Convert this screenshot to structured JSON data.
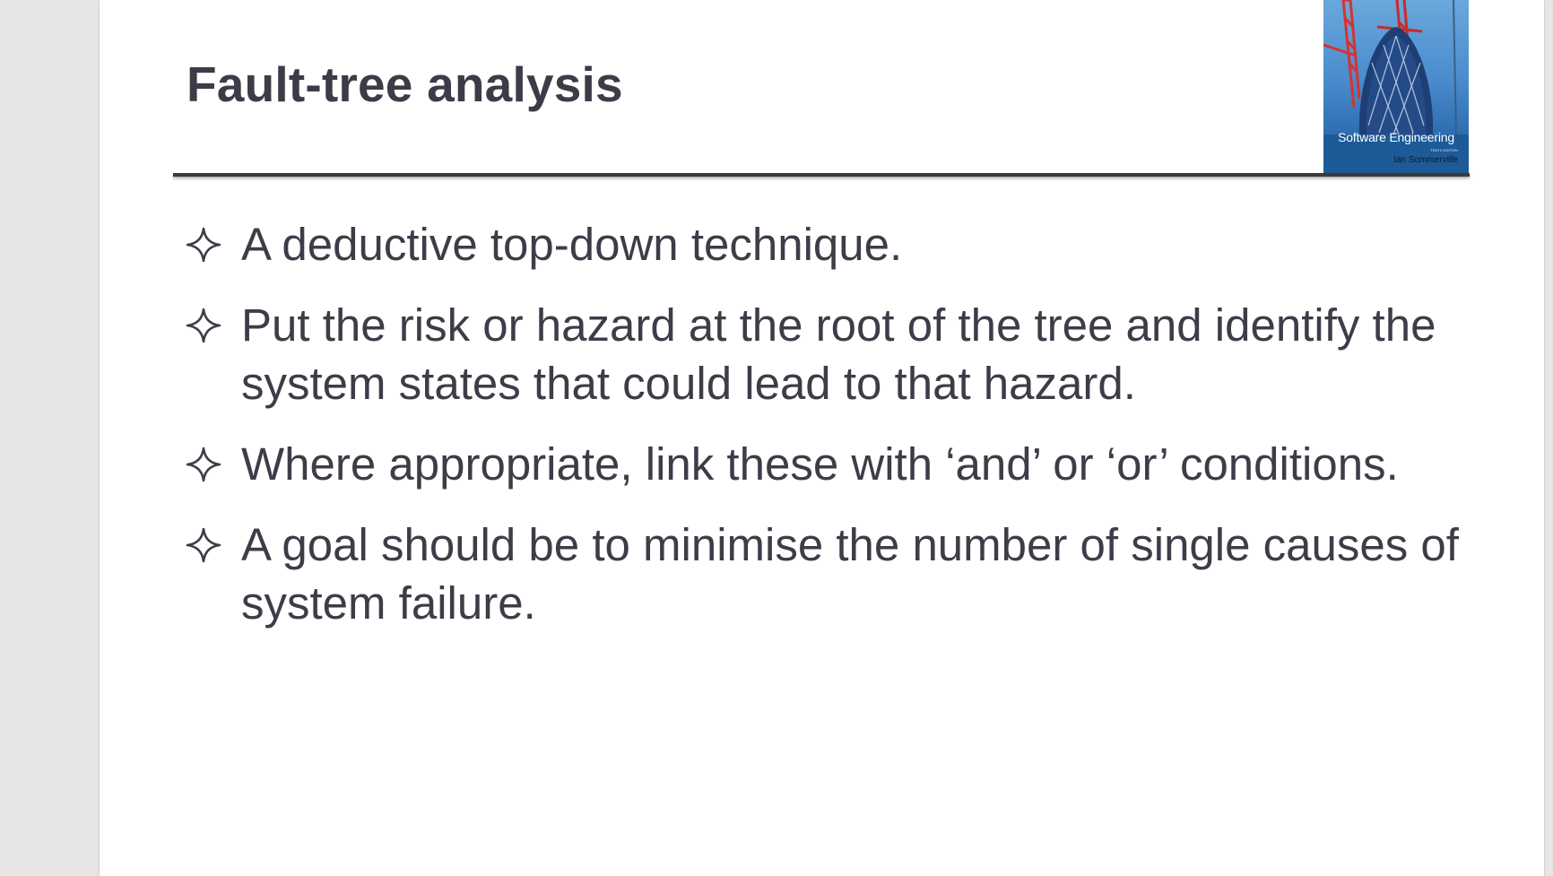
{
  "slide": {
    "title": "Fault-tree analysis",
    "bullets": [
      "A deductive top-down technique.",
      "Put the risk or hazard at the root of the tree and identify the system states that could lead to that hazard.",
      "Where appropriate, link these with ‘and’ or ‘or’ conditions.",
      "A goal should be to minimise the number of single causes of system failure."
    ],
    "bullet_icon": "four-point-star-outline-icon"
  },
  "book_cover": {
    "title": "Software Engineering",
    "edition": "TENTH EDITION",
    "author": "Ian Sommerville"
  },
  "colors": {
    "text": "#3d3d48",
    "title": "#3c3c48",
    "rule": "#3a3a3a",
    "viewer_background": "#e6e6e6",
    "slide_background": "#ffffff"
  }
}
